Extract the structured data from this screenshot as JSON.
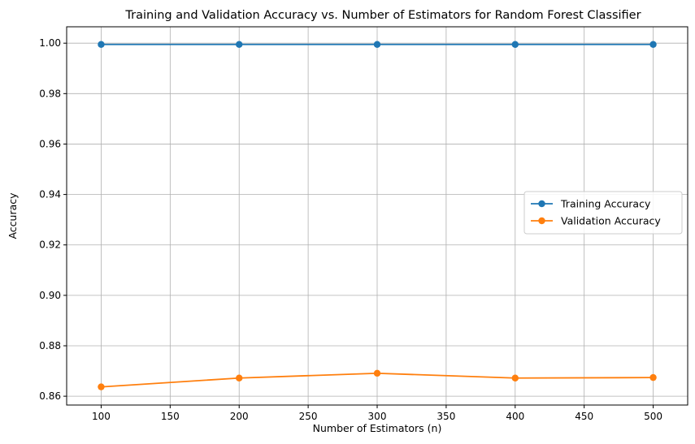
{
  "chart_data": {
    "type": "line",
    "title": "Training and Validation Accuracy vs. Number of Estimators for Random Forest Classifier",
    "xlabel": "Number of Estimators (n)",
    "ylabel": "Accuracy",
    "x": [
      100,
      200,
      300,
      400,
      500
    ],
    "xlim": [
      75,
      525
    ],
    "ylim": [
      0.8565,
      1.0065
    ],
    "xticks": [
      100,
      150,
      200,
      250,
      300,
      350,
      400,
      450,
      500
    ],
    "yticks": [
      0.86,
      0.88,
      0.9,
      0.92,
      0.94,
      0.96,
      0.98,
      1.0
    ],
    "ytick_labels": [
      "0.86",
      "0.88",
      "0.90",
      "0.92",
      "0.94",
      "0.96",
      "0.98",
      "1.00"
    ],
    "grid": true,
    "legend_position": "center-right",
    "series": [
      {
        "name": "Training Accuracy",
        "color": "#1f77b4",
        "marker": "circle",
        "values": [
          0.9995,
          0.9995,
          0.9995,
          0.9995,
          0.9995
        ]
      },
      {
        "name": "Validation Accuracy",
        "color": "#ff7f0e",
        "marker": "circle",
        "values": [
          0.8637,
          0.8672,
          0.8691,
          0.8672,
          0.8674
        ]
      }
    ]
  }
}
